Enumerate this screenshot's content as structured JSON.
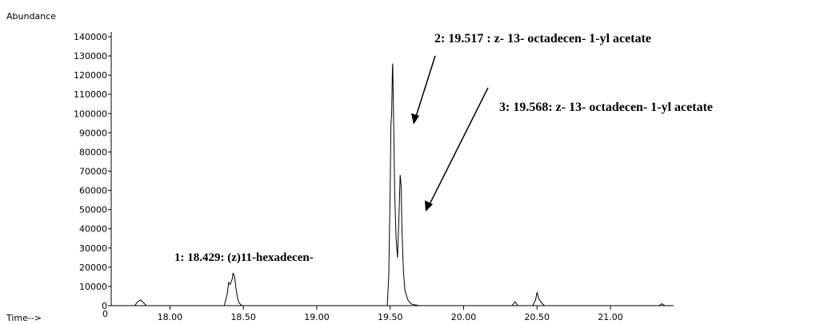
{
  "chart_data": {
    "type": "line",
    "ylabel": "Abundance",
    "xlabel": "Time-->",
    "xlim": [
      17.6,
      21.43
    ],
    "ylim": [
      0,
      140000
    ],
    "x_ticks": [
      "18.00",
      "18.50",
      "19.00",
      "19.50",
      "20.00",
      "20.50",
      "21.00"
    ],
    "x_tick_values": [
      18.0,
      18.5,
      19.0,
      19.5,
      20.0,
      20.5,
      21.0
    ],
    "y_ticks": [
      "0",
      "10000",
      "20000",
      "30000",
      "40000",
      "50000",
      "60000",
      "70000",
      "80000",
      "90000",
      "100000",
      "110000",
      "120000",
      "130000",
      "140000"
    ],
    "y_tick_values": [
      0,
      10000,
      20000,
      30000,
      40000,
      50000,
      60000,
      70000,
      80000,
      90000,
      100000,
      110000,
      120000,
      130000,
      140000
    ],
    "series": [
      {
        "x": [
          17.6,
          17.76,
          17.78,
          17.8,
          17.82,
          17.84,
          18.0,
          18.37,
          18.39,
          18.4,
          18.41,
          18.425,
          18.43,
          18.44,
          18.45,
          18.46,
          18.47,
          18.49,
          18.6,
          19.0,
          19.48,
          19.49,
          19.5,
          19.505,
          19.51,
          19.515,
          19.517,
          19.52,
          19.525,
          19.53,
          19.54,
          19.55,
          19.56,
          19.568,
          19.575,
          19.58,
          19.59,
          19.6,
          19.62,
          19.64,
          19.66,
          19.7,
          20.0,
          20.33,
          20.35,
          20.37,
          20.45,
          20.47,
          20.49,
          20.5,
          20.51,
          20.53,
          20.55,
          21.0,
          21.33,
          21.35,
          21.37,
          21.43
        ],
        "y": [
          0,
          0,
          2000,
          3000,
          1500,
          0,
          0,
          0,
          6000,
          12000,
          11000,
          14000,
          17000,
          15000,
          9000,
          4000,
          1500,
          0,
          0,
          0,
          0,
          15000,
          60000,
          95000,
          100000,
          123000,
          126000,
          112000,
          90000,
          60000,
          35000,
          25000,
          48000,
          68000,
          62000,
          40000,
          18000,
          8000,
          3000,
          1000,
          500,
          0,
          0,
          0,
          2000,
          0,
          0,
          0,
          3000,
          7000,
          4000,
          1500,
          0,
          0,
          0,
          1000,
          0,
          0
        ]
      }
    ],
    "annotations": [
      {
        "text": "2: 19.517 :  z- 13- octadecen- 1-yl acetate",
        "target_x": 19.517,
        "target_y": 126000
      },
      {
        "text": "3: 19.568: z- 13- octadecen- 1-yl acetate",
        "target_x": 19.568,
        "target_y": 68000
      },
      {
        "text": "1: 18.429: (z)11-hexadecen-",
        "target_x": 18.429,
        "target_y": 17000
      }
    ]
  }
}
